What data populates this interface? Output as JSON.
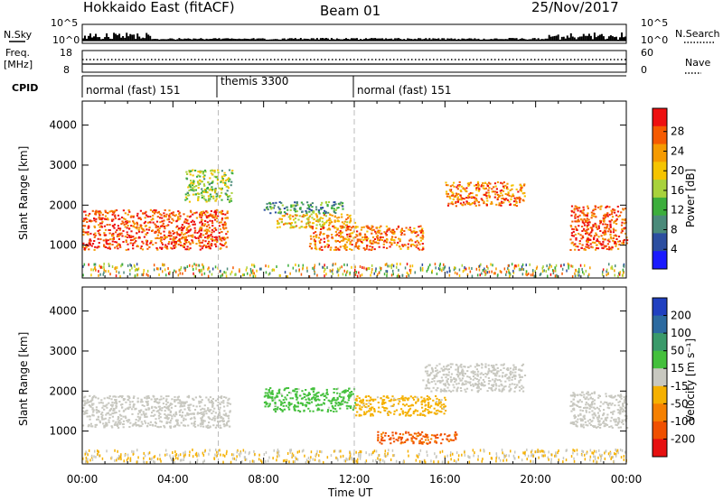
{
  "header": {
    "station": "Hokkaido East (fitACF)",
    "beam": "Beam 01",
    "date": "25/Nov/2017"
  },
  "strip_labels": {
    "nsky": "N.Sky",
    "nsky_ticks": [
      "10^5",
      "10^0"
    ],
    "nsearch": "N.Search",
    "nsearch_ticks": [
      "10^5",
      "10^0"
    ],
    "freq_line1": "Freq.",
    "freq_line2": "[MHz]",
    "freq_ticks": [
      "18",
      "8"
    ],
    "nave": "Nave",
    "nave_ticks": [
      "60",
      "0"
    ],
    "cpid": "CPID"
  },
  "cpid_segments": [
    {
      "label": "normal (fast) 151",
      "start_hour": 0
    },
    {
      "label": "themis 3300",
      "start_hour": 6
    },
    {
      "label": "normal (fast) 151",
      "start_hour": 12
    }
  ],
  "axes": {
    "ylabel": "Slant Range [km]",
    "xlabel": "Time UT",
    "x_ticks": [
      "00:00",
      "04:00",
      "08:00",
      "12:00",
      "16:00",
      "20:00",
      "00:00"
    ],
    "y_ticks": [
      "1000",
      "2000",
      "3000",
      "4000"
    ]
  },
  "power_colorbar": {
    "label": "Power [dB]",
    "ticks": [
      "4",
      "8",
      "12",
      "16",
      "20",
      "24",
      "28"
    ],
    "colors": [
      "#1a1aff",
      "#2c4ea0",
      "#4a8a7a",
      "#3cae3c",
      "#a8d23c",
      "#f5c400",
      "#f59a00",
      "#f55a00",
      "#ee1010"
    ]
  },
  "velocity_colorbar": {
    "label": "Velocity [m s⁻¹]",
    "ticks": [
      "200",
      "100",
      "50",
      "15",
      "-15",
      "-50",
      "-100",
      "-200"
    ],
    "colors": [
      "#2040c0",
      "#2c6aa0",
      "#3a9a6a",
      "#44c03c",
      "#c8c8c0",
      "#f5b000",
      "#f58000",
      "#f05000",
      "#e61010"
    ]
  },
  "chart_data": [
    {
      "type": "heatmap",
      "title": "Power",
      "xlabel": "Time UT",
      "ylabel": "Slant Range [km]",
      "xlim": [
        0,
        24
      ],
      "ylim": [
        180,
        4600
      ],
      "colorbar_range": [
        3,
        30
      ],
      "regions": [
        {
          "x": [
            0,
            6.4
          ],
          "y": [
            900,
            1900
          ],
          "value": 26
        },
        {
          "x": [
            4.5,
            6.6
          ],
          "y": [
            2100,
            2900
          ],
          "value": 16
        },
        {
          "x": [
            8,
            11.5
          ],
          "y": [
            1800,
            2100
          ],
          "value": 12
        },
        {
          "x": [
            8.5,
            12
          ],
          "y": [
            1450,
            1800
          ],
          "value": 20
        },
        {
          "x": [
            10,
            15
          ],
          "y": [
            900,
            1500
          ],
          "value": 24
        },
        {
          "x": [
            16,
            19.5
          ],
          "y": [
            2000,
            2600
          ],
          "value": 24
        },
        {
          "x": [
            21.5,
            24
          ],
          "y": [
            900,
            2000
          ],
          "value": 26
        }
      ]
    },
    {
      "type": "heatmap",
      "title": "Velocity",
      "xlabel": "Time UT",
      "ylabel": "Slant Range [km]",
      "xlim": [
        0,
        24
      ],
      "ylim": [
        180,
        4600
      ],
      "colorbar_range": [
        -200,
        200
      ],
      "regions": [
        {
          "x": [
            0,
            6.5
          ],
          "y": [
            1100,
            1900
          ],
          "value": 0
        },
        {
          "x": [
            8,
            12
          ],
          "y": [
            1500,
            2100
          ],
          "value": 40
        },
        {
          "x": [
            12,
            16
          ],
          "y": [
            1400,
            1900
          ],
          "value": -40
        },
        {
          "x": [
            13,
            16.5
          ],
          "y": [
            700,
            1000
          ],
          "value": -120
        },
        {
          "x": [
            15,
            19.5
          ],
          "y": [
            2000,
            2700
          ],
          "value": 0
        },
        {
          "x": [
            21.5,
            24
          ],
          "y": [
            1100,
            2000
          ],
          "value": 0
        }
      ]
    }
  ]
}
